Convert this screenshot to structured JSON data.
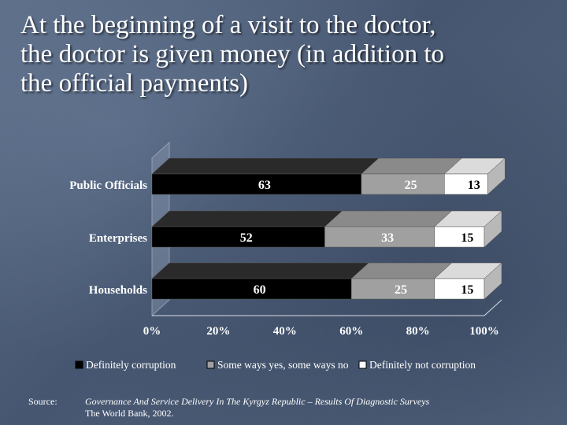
{
  "title": "At the beginning of a visit to the doctor,\nthe doctor is given money (in addition to\nthe official payments)",
  "chart_data": {
    "type": "bar",
    "orientation": "horizontal",
    "stacked": true,
    "percent_stacked": true,
    "categories": [
      "Public Officials",
      "Enterprises",
      "Households"
    ],
    "series": [
      {
        "name": "Definitely corruption",
        "values": [
          63,
          52,
          60
        ],
        "color": "#000000",
        "label_color": "#ffffff"
      },
      {
        "name": "Some ways yes, some ways no",
        "values": [
          25,
          33,
          25
        ],
        "color": "#a0a0a0",
        "label_color": "#ffffff"
      },
      {
        "name": "Definitely not corruption",
        "values": [
          13,
          15,
          15
        ],
        "color": "#ffffff",
        "label_color": "#000000"
      }
    ],
    "x_ticks": [
      "0%",
      "20%",
      "40%",
      "60%",
      "80%",
      "100%"
    ],
    "xlim": [
      0,
      100
    ],
    "legend_position": "bottom",
    "grid": false,
    "style": "3d"
  },
  "source": {
    "label": "Source:",
    "line1": "Governance And Service Delivery In The Kyrgyz Republic – Results Of Diagnostic Surveys",
    "line2": "The World Bank, 2002."
  }
}
